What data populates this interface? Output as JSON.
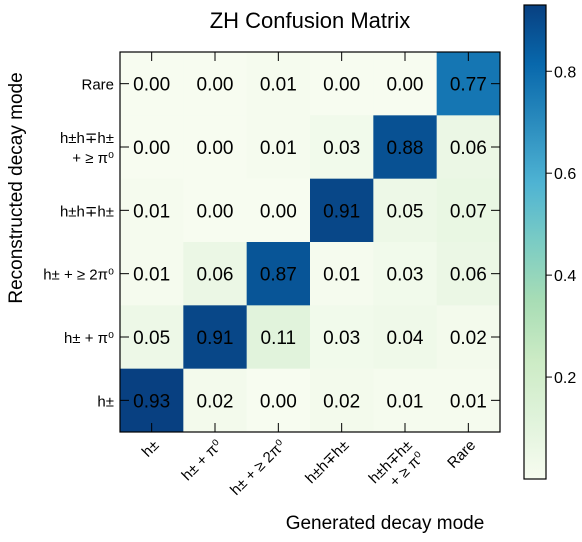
{
  "chart_data": {
    "type": "heatmap",
    "title": "ZH Confusion Matrix",
    "xlabel": "Generated decay mode",
    "ylabel": "Reconstructed decay mode",
    "x_categories": [
      [
        "h±"
      ],
      [
        "h± + π⁰"
      ],
      [
        "h± + ≥ 2π⁰"
      ],
      [
        "h±h∓h±"
      ],
      [
        "h±h∓h±",
        "+ ≥ π⁰"
      ],
      [
        "Rare"
      ]
    ],
    "y_categories": [
      [
        "Rare"
      ],
      [
        "h±h∓h±",
        "+ ≥ π⁰"
      ],
      [
        "h±h∓h±"
      ],
      [
        "h± + ≥ 2π⁰"
      ],
      [
        "h± + π⁰"
      ],
      [
        "h±"
      ]
    ],
    "values": [
      [
        0.0,
        0.0,
        0.01,
        0.0,
        0.0,
        0.77
      ],
      [
        0.0,
        0.0,
        0.01,
        0.03,
        0.88,
        0.06
      ],
      [
        0.01,
        0.0,
        0.0,
        0.91,
        0.05,
        0.07
      ],
      [
        0.01,
        0.06,
        0.87,
        0.01,
        0.03,
        0.06
      ],
      [
        0.05,
        0.91,
        0.11,
        0.03,
        0.04,
        0.02
      ],
      [
        0.93,
        0.02,
        0.0,
        0.02,
        0.01,
        0.01
      ]
    ],
    "colorbar": {
      "colormap": "GnBu",
      "range": [
        0,
        0.93
      ],
      "ticks": [
        "0.2",
        "0.4",
        "0.6",
        "0.8"
      ],
      "tick_values": [
        0.2,
        0.4,
        0.6,
        0.8
      ]
    }
  }
}
